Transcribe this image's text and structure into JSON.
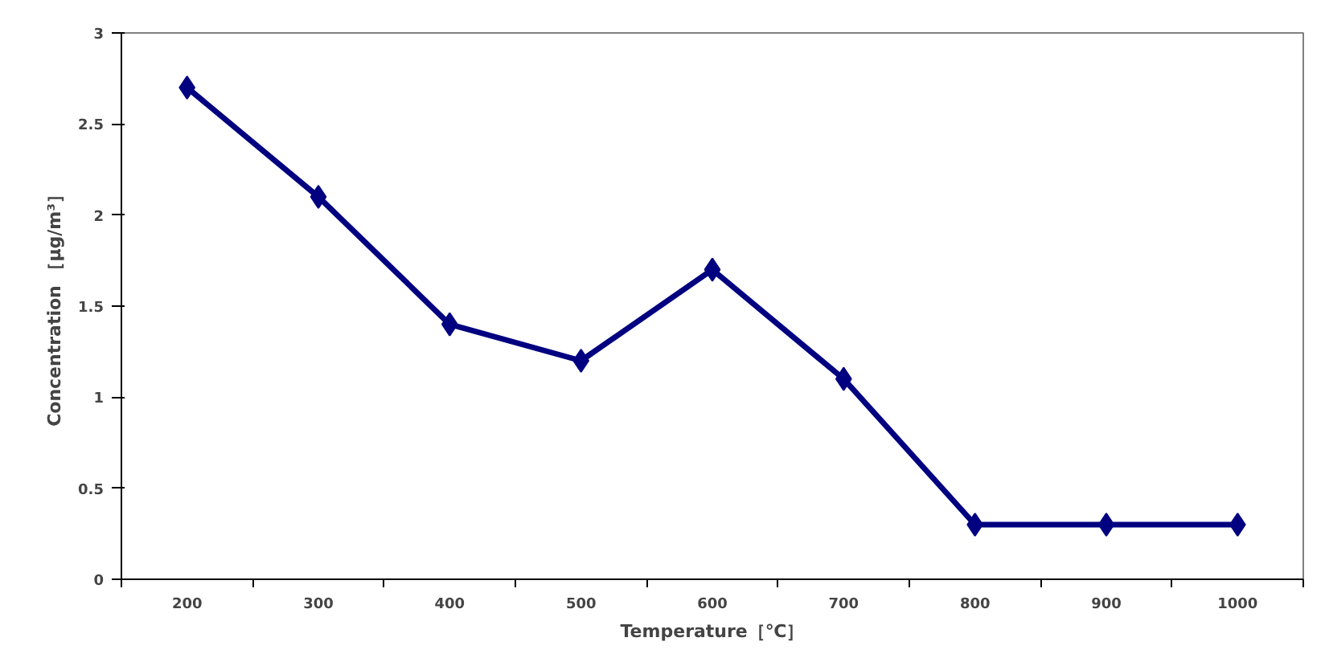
{
  "chart_data": {
    "type": "line",
    "xlabel": "Temperature［℃］",
    "ylabel": "Concentration ［μg/m³］",
    "categories": [
      "200",
      "300",
      "400",
      "500",
      "600",
      "700",
      "800",
      "900",
      "1000"
    ],
    "series": [
      {
        "color": "#000080",
        "values": [
          2.7,
          2.1,
          1.4,
          1.2,
          1.7,
          1.1,
          0.3,
          0.3,
          0.3
        ]
      }
    ],
    "ylim": [
      0,
      3
    ],
    "yticks": [
      0,
      0.5,
      1,
      1.5,
      2,
      2.5,
      3
    ],
    "grid": false,
    "marker": "diamond",
    "line_style": "solid"
  }
}
